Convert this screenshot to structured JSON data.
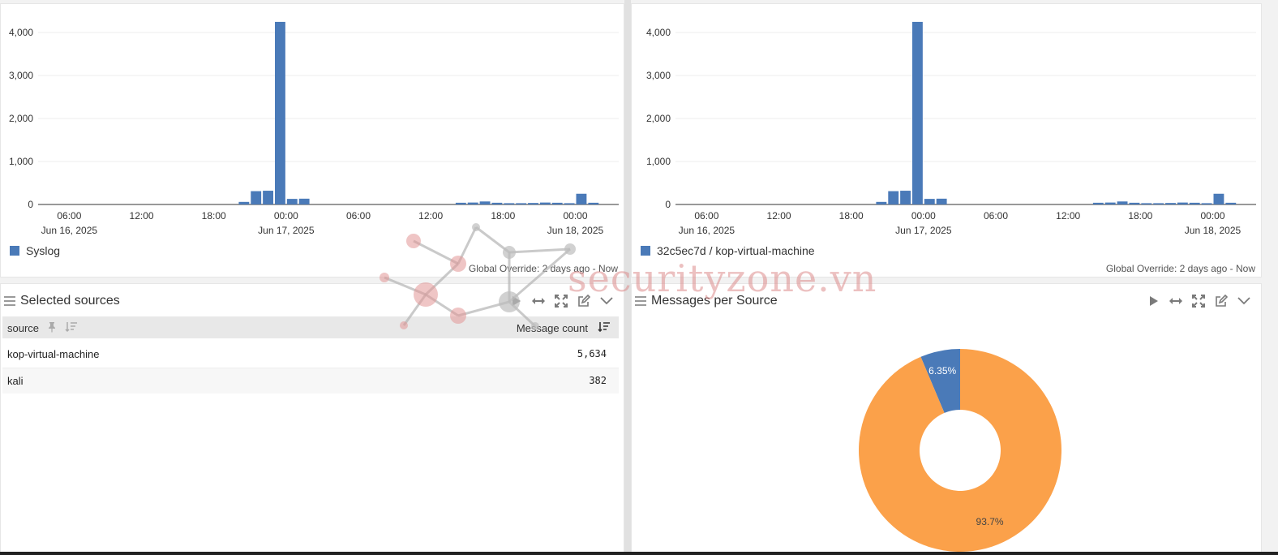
{
  "chart_data": [
    {
      "type": "bar",
      "title": "",
      "series": [
        {
          "name": "Syslog",
          "values": [
            60,
            310,
            320,
            130,
            135,
            0,
            0,
            0,
            0,
            0,
            0,
            0,
            0,
            0,
            0,
            0,
            0,
            40,
            45,
            70,
            40,
            30,
            30,
            35,
            45,
            40,
            30,
            250,
            40
          ]
        }
      ],
      "spike": {
        "value": 4250
      },
      "yticks": [
        "0",
        "1,000",
        "2,000",
        "3,000",
        "4,000"
      ],
      "ylim": [
        0,
        4400
      ],
      "xticks": [
        {
          "time": "06:00",
          "date": "Jun 16, 2025"
        },
        {
          "time": "12:00",
          "date": ""
        },
        {
          "time": "18:00",
          "date": ""
        },
        {
          "time": "00:00",
          "date": "Jun 17, 2025"
        },
        {
          "time": "06:00",
          "date": ""
        },
        {
          "time": "12:00",
          "date": ""
        },
        {
          "time": "18:00",
          "date": ""
        },
        {
          "time": "00:00",
          "date": "Jun 18, 2025"
        }
      ],
      "legend": "Syslog",
      "override": "Global Override: 2 days ago - Now"
    },
    {
      "type": "bar",
      "title": "",
      "series": [
        {
          "name": "32c5ec7d / kop-virtual-machine",
          "values": [
            60,
            310,
            320,
            130,
            135,
            0,
            0,
            0,
            0,
            0,
            0,
            0,
            0,
            0,
            0,
            0,
            0,
            40,
            45,
            70,
            40,
            30,
            30,
            35,
            45,
            40,
            30,
            250,
            40
          ]
        }
      ],
      "spike": {
        "value": 4250
      },
      "yticks": [
        "0",
        "1,000",
        "2,000",
        "3,000",
        "4,000"
      ],
      "ylim": [
        0,
        4400
      ],
      "xticks": [
        {
          "time": "06:00",
          "date": "Jun 16, 2025"
        },
        {
          "time": "12:00",
          "date": ""
        },
        {
          "time": "18:00",
          "date": ""
        },
        {
          "time": "00:00",
          "date": "Jun 17, 2025"
        },
        {
          "time": "06:00",
          "date": ""
        },
        {
          "time": "12:00",
          "date": ""
        },
        {
          "time": "18:00",
          "date": ""
        },
        {
          "time": "00:00",
          "date": "Jun 18, 2025"
        }
      ],
      "legend": "32c5ec7d / kop-virtual-machine",
      "override": "Global Override: 2 days ago - Now"
    },
    {
      "type": "pie",
      "title": "Messages per Source",
      "slices": [
        {
          "label": "kali",
          "value": 6.35,
          "display": "6.35%",
          "color": "#4a7ab8"
        },
        {
          "label": "kop-virtual-machine",
          "value": 93.7,
          "display": "93.7%",
          "color": "#fba14a"
        }
      ]
    }
  ],
  "table": {
    "title": "Selected sources",
    "columns": [
      "source",
      "Message count"
    ],
    "rows": [
      {
        "source": "kop-virtual-machine",
        "count": "5,634"
      },
      {
        "source": "kali",
        "count": "382"
      }
    ]
  },
  "colors": {
    "bar": "#4a7ab8",
    "pie_major": "#fba14a",
    "pie_minor": "#4a7ab8"
  },
  "icons": [
    "drag-handle-icon",
    "play-icon",
    "expand-horizontal-icon",
    "fullscreen-icon",
    "edit-icon",
    "chevron-down-icon",
    "pin-icon",
    "sort-icon"
  ],
  "watermark": "securityzone.vn"
}
